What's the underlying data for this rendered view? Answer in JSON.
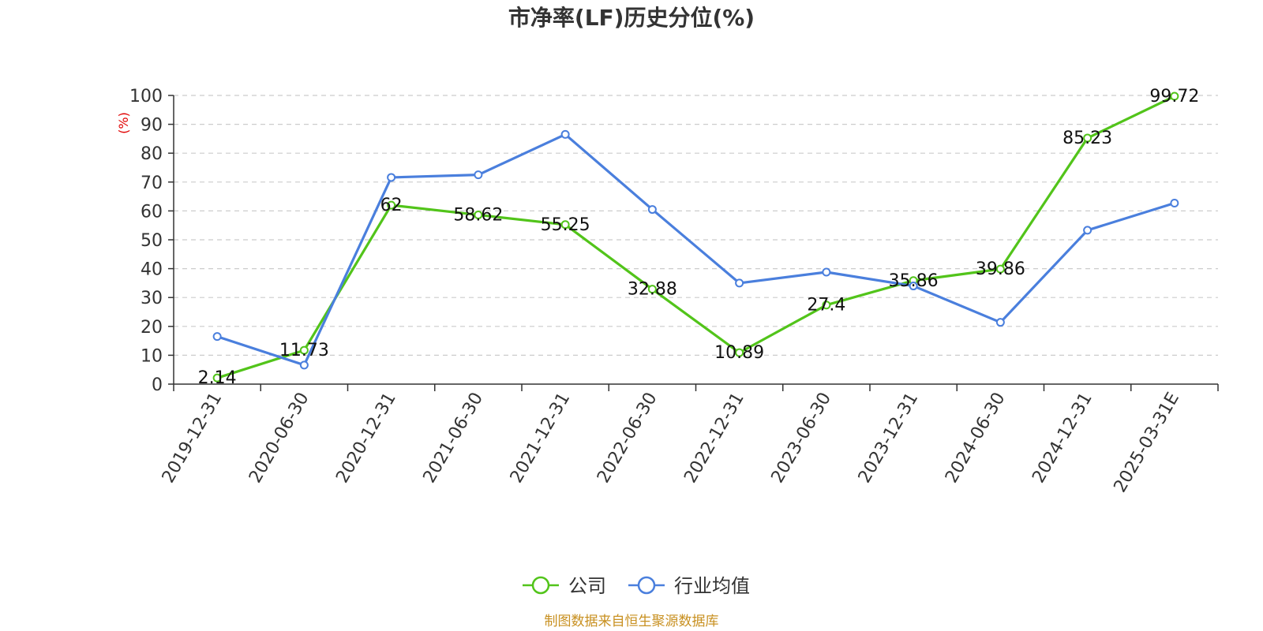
{
  "chart_data": {
    "type": "line",
    "title": "市净率(LF)历史分位(%)",
    "y_unit_label": "(%)",
    "ylim": [
      0,
      100
    ],
    "y_ticks": [
      0,
      10,
      20,
      30,
      40,
      50,
      60,
      70,
      80,
      90,
      100
    ],
    "grid": true,
    "legend_position": "bottom-center",
    "categories": [
      "2019-12-31",
      "2020-06-30",
      "2020-12-31",
      "2021-06-30",
      "2021-12-31",
      "2022-06-30",
      "2022-12-31",
      "2023-06-30",
      "2023-12-31",
      "2024-06-30",
      "2024-12-31",
      "2025-03-31E"
    ],
    "series": [
      {
        "name": "公司",
        "color": "#52C41A",
        "values": [
          2.14,
          11.73,
          62,
          58.62,
          55.25,
          32.88,
          10.89,
          27.4,
          35.86,
          39.86,
          85.23,
          99.72
        ],
        "labels": [
          "2.14",
          "11.73",
          "62",
          "58.62",
          "55.25",
          "32.88",
          "10.89",
          "27.4",
          "35.86",
          "39.86",
          "85.23",
          "99.72"
        ],
        "show_labels": true
      },
      {
        "name": "行业均值",
        "color": "#4A7FDD",
        "values": [
          16.5,
          6.6,
          71.6,
          72.5,
          86.5,
          60.5,
          35.0,
          38.8,
          34.0,
          21.4,
          53.3,
          62.7
        ],
        "show_labels": false
      }
    ]
  },
  "source_note": "制图数据来自恒生聚源数据库",
  "colors": {
    "axis": "#333333",
    "grid": "#cccccc",
    "unit_label": "#e00000",
    "source_note": "#c89020"
  }
}
